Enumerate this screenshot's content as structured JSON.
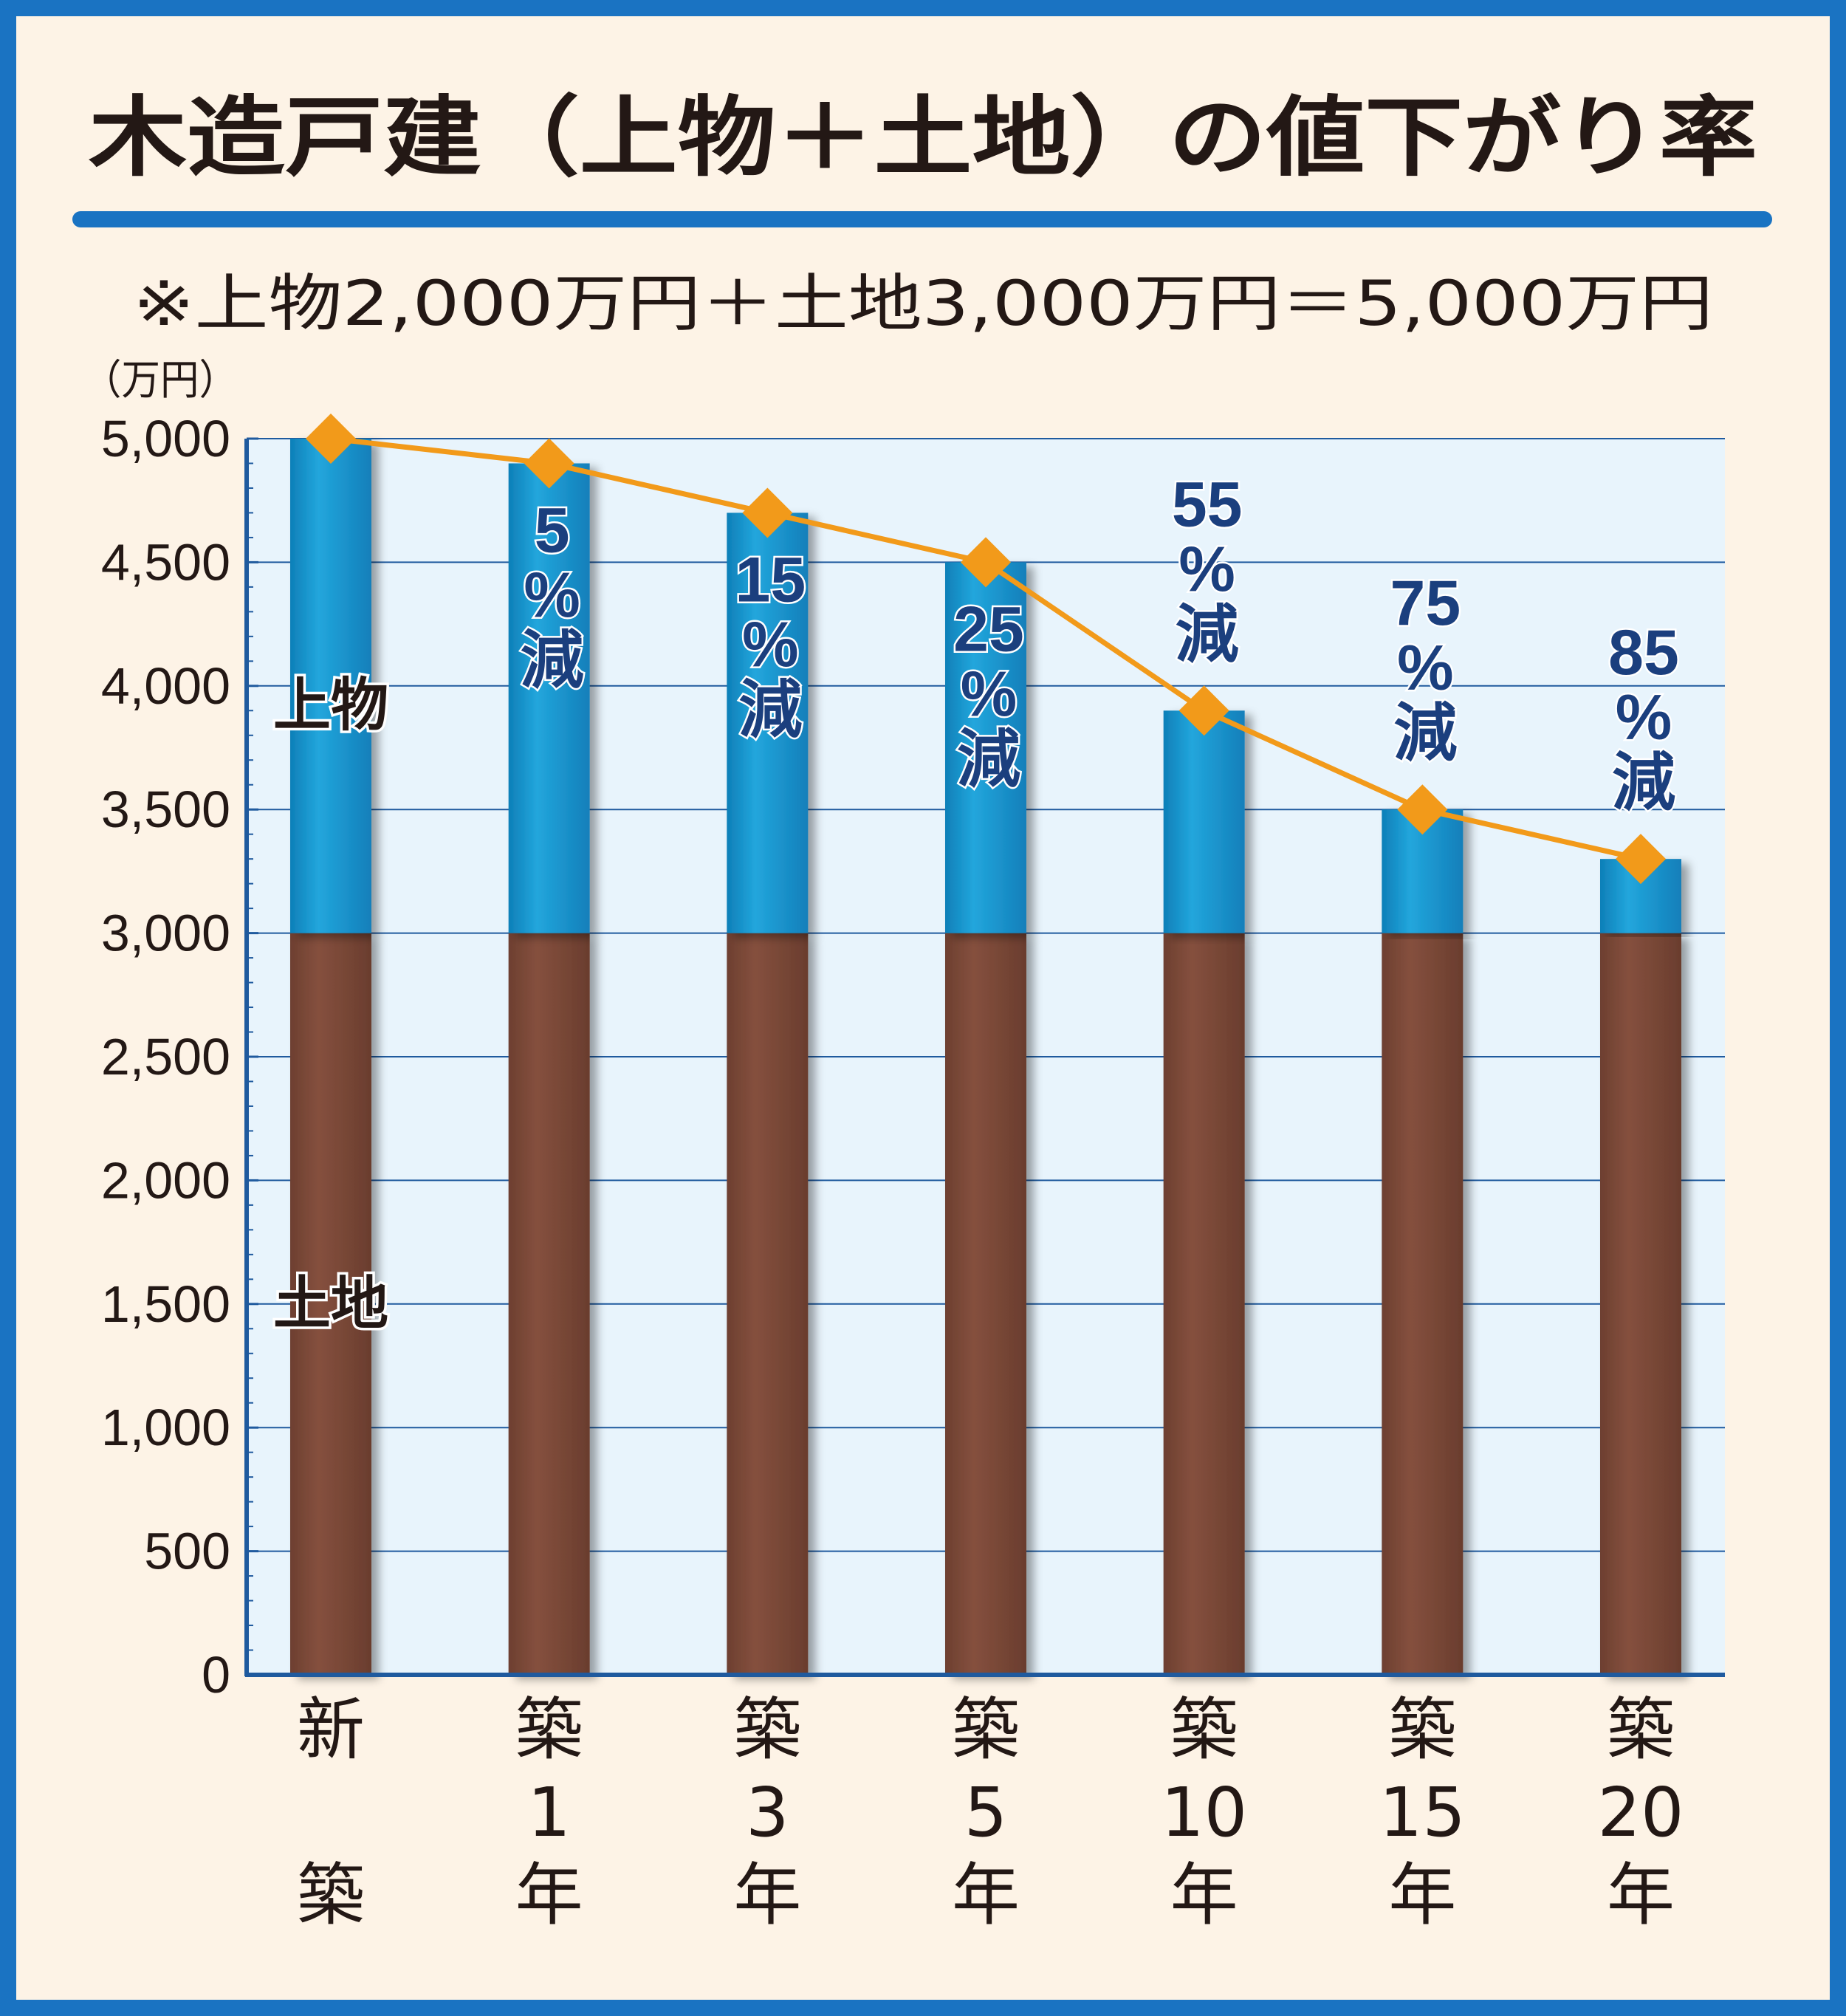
{
  "chart_data": {
    "type": "bar",
    "stacked": true,
    "title": "木造戸建（上物＋土地）の値下がり率",
    "subtitle": "※上物2,000万円＋土地3,000万円＝5,000万円",
    "y_unit": "（万円）",
    "ylim": [
      0,
      5000
    ],
    "y_ticks": [
      "0",
      "500",
      "1,000",
      "1,500",
      "2,000",
      "2,500",
      "3,000",
      "3,500",
      "4,000",
      "4,500",
      "5,000"
    ],
    "grid": true,
    "categories": [
      [
        "新",
        "",
        "築"
      ],
      [
        "築",
        "1",
        "年"
      ],
      [
        "築",
        "3",
        "年"
      ],
      [
        "築",
        "5",
        "年"
      ],
      [
        "築",
        "10",
        "年"
      ],
      [
        "築",
        "15",
        "年"
      ],
      [
        "築",
        "20",
        "年"
      ]
    ],
    "series": [
      {
        "name": "土地",
        "values": [
          3000,
          3000,
          3000,
          3000,
          3000,
          3000,
          3000
        ]
      },
      {
        "name": "上物",
        "values": [
          2000,
          1900,
          1700,
          1500,
          900,
          500,
          300
        ]
      }
    ],
    "line_totals": [
      5000,
      4900,
      4700,
      4500,
      3900,
      3500,
      3300
    ],
    "reduction_labels": [
      "",
      "5%減",
      "15%減",
      "25%減",
      "55%減",
      "75%減",
      "85%減"
    ],
    "reduction_label_parts": [
      [],
      [
        "5",
        "%",
        "減"
      ],
      [
        "15",
        "%",
        "減"
      ],
      [
        "25",
        "%",
        "減"
      ],
      [
        "55",
        "%",
        "減"
      ],
      [
        "75",
        "%",
        "減"
      ],
      [
        "85",
        "%",
        "減"
      ]
    ],
    "colors": {
      "land": "#7b4a39",
      "building": "#1a9bd1",
      "line": "#f29a1a",
      "plot_bg": "#e8f4fc",
      "grid": "#1f5a9e"
    }
  }
}
